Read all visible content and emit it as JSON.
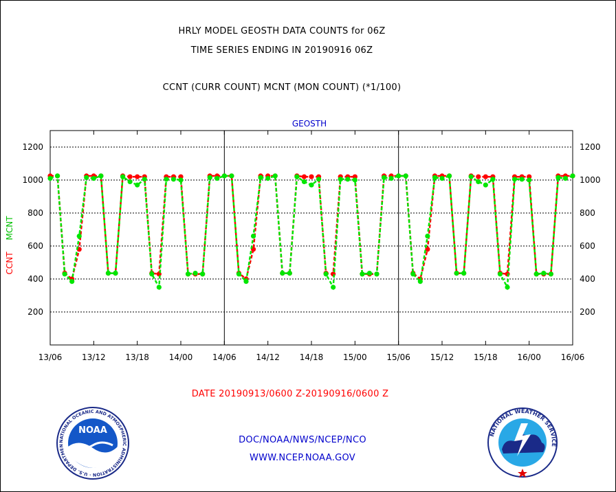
{
  "header": {
    "title_line1": "HRLY MODEL GEOSTH DATA COUNTS for 06Z",
    "title_line2": "TIME SERIES ENDING IN 20190916 06Z",
    "subtitle": "CCNT (CURR COUNT) MCNT (MON COUNT) (*1/100)"
  },
  "footer": {
    "date_range": "DATE 20190913/0600 Z-20190916/0600 Z",
    "org_path": "DOC/NOAA/NWS/NCEP/NCO",
    "website": "WWW.NCEP.NOAA.GOV"
  },
  "logos": {
    "noaa_text": "NOAA",
    "noaa_ring_text": "NATIONAL OCEANIC AND ATMOSPHERIC ADMINISTRATION · U.S. DEPARTMENT OF COMMERCE",
    "nws_ring_text": "NATIONAL WEATHER SERVICE"
  },
  "colors": {
    "ccnt": "#ff0000",
    "mcnt": "#00e600",
    "title": "#000000",
    "panel_label": "#0000cc",
    "footer_link": "#0000cc",
    "date_text": "#ff0000"
  },
  "chart_data": {
    "type": "line",
    "panel_label": "GEOSTH",
    "ylabel_ccnt": "CCNT",
    "ylabel_mcnt": "MCNT",
    "ylim": [
      0,
      1300
    ],
    "yticks": [
      200,
      400,
      600,
      800,
      1000,
      1200
    ],
    "xlim": [
      0,
      72
    ],
    "xtick_labels": [
      "13/06",
      "13/12",
      "13/18",
      "14/00",
      "14/06",
      "14/12",
      "14/18",
      "15/00",
      "15/06",
      "15/12",
      "15/18",
      "16/00",
      "16/06"
    ],
    "grid": "horizontal dotted",
    "day_separators": [
      24,
      48
    ],
    "x_hours": [
      0,
      1,
      2,
      3,
      4,
      5,
      6,
      7,
      8,
      9,
      10,
      11,
      12,
      13,
      14,
      15,
      16,
      17,
      18,
      19,
      20,
      21,
      22,
      23,
      24,
      25,
      26,
      27,
      28,
      29,
      30,
      31,
      32,
      33,
      34,
      35,
      36,
      37,
      38,
      39,
      40,
      41,
      42,
      43,
      44,
      45,
      46,
      47,
      48,
      49,
      50,
      51,
      52,
      53,
      54,
      55,
      56,
      57,
      58,
      59,
      60,
      61,
      62,
      63,
      64,
      65,
      66,
      67,
      68,
      69,
      70,
      71,
      72
    ],
    "series": [
      {
        "name": "CCNT",
        "values": [
          1025,
          1025,
          435,
          400,
          580,
          1025,
          1025,
          1025,
          435,
          435,
          1025,
          1020,
          1020,
          1020,
          435,
          430,
          1020,
          1020,
          1020,
          430,
          430,
          430,
          1025,
          1025,
          1025,
          1025,
          435,
          400,
          580,
          1025,
          1025,
          1025,
          435,
          435,
          1025,
          1020,
          1020,
          1020,
          435,
          430,
          1020,
          1020,
          1020,
          430,
          430,
          430,
          1025,
          1025,
          1025,
          1025,
          435,
          400,
          580,
          1025,
          1025,
          1025,
          435,
          435,
          1025,
          1020,
          1020,
          1020,
          435,
          430,
          1020,
          1020,
          1020,
          430,
          430,
          430,
          1025,
          1025,
          1025
        ]
      },
      {
        "name": "MCNT",
        "values": [
          1010,
          1025,
          430,
          385,
          660,
          1015,
          1010,
          1025,
          435,
          435,
          1020,
          990,
          970,
          1005,
          430,
          350,
          1005,
          1005,
          1000,
          430,
          435,
          430,
          1015,
          1010,
          1025,
          1025,
          430,
          385,
          660,
          1015,
          1010,
          1025,
          435,
          435,
          1020,
          990,
          970,
          1005,
          430,
          350,
          1005,
          1005,
          1000,
          430,
          435,
          430,
          1015,
          1010,
          1025,
          1025,
          430,
          385,
          660,
          1015,
          1010,
          1025,
          435,
          435,
          1020,
          990,
          970,
          1005,
          430,
          350,
          1005,
          1005,
          1000,
          430,
          435,
          430,
          1015,
          1010,
          1025
        ]
      }
    ]
  }
}
